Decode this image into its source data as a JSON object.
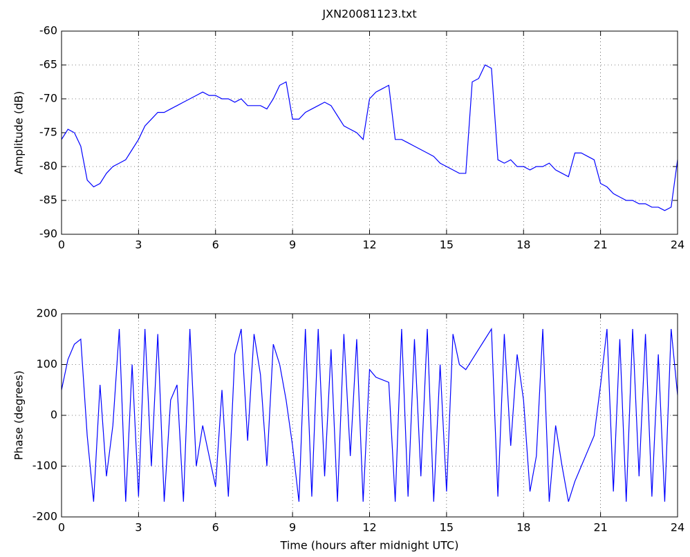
{
  "chart_data": [
    {
      "type": "line",
      "title": "JXN20081123.txt",
      "y_label": "Amplitude (dB)",
      "grid": true,
      "xlim": [
        0,
        24
      ],
      "xticks": [
        0,
        3,
        6,
        9,
        12,
        15,
        18,
        21,
        24
      ],
      "ylim": [
        -90,
        -60
      ],
      "yticks": [
        -90,
        -85,
        -80,
        -75,
        -70,
        -65,
        -60
      ],
      "x": [
        0,
        0.25,
        0.5,
        0.75,
        1,
        1.25,
        1.5,
        1.75,
        2,
        2.25,
        2.5,
        2.75,
        3,
        3.25,
        3.5,
        3.75,
        4,
        4.25,
        4.5,
        4.75,
        5,
        5.25,
        5.5,
        5.75,
        6,
        6.25,
        6.5,
        6.75,
        7,
        7.25,
        7.5,
        7.75,
        8,
        8.25,
        8.5,
        8.75,
        9,
        9.25,
        9.5,
        9.75,
        10,
        10.25,
        10.5,
        10.75,
        11,
        11.25,
        11.5,
        11.75,
        12,
        12.25,
        12.5,
        12.75,
        13,
        13.25,
        13.5,
        13.75,
        14,
        14.25,
        14.5,
        14.75,
        15,
        15.25,
        15.5,
        15.75,
        16,
        16.25,
        16.5,
        16.75,
        17,
        17.25,
        17.5,
        17.75,
        18,
        18.25,
        18.5,
        18.75,
        19,
        19.25,
        19.5,
        19.75,
        20,
        20.25,
        20.5,
        20.75,
        21,
        21.25,
        21.5,
        21.75,
        22,
        22.25,
        22.5,
        22.75,
        23,
        23.25,
        23.5,
        23.75,
        24
      ],
      "series": [
        {
          "name": "Amplitude",
          "color": "#0000ff",
          "values": [
            -76,
            -74.5,
            -75,
            -77,
            -82,
            -83,
            -82.5,
            -81,
            -80,
            -79.5,
            -79,
            -77.5,
            -76,
            -74,
            -73,
            -72,
            -72,
            -71.5,
            -71,
            -70.5,
            -70,
            -69.5,
            -69,
            -69.5,
            -69.5,
            -70,
            -70,
            -70.5,
            -70,
            -71,
            -71,
            -71,
            -71.5,
            -70,
            -68,
            -67.5,
            -73,
            -73,
            -72,
            -71.5,
            -71,
            -70.5,
            -71,
            -72.5,
            -74,
            -74.5,
            -75,
            -76,
            -70,
            -69,
            -68.5,
            -68,
            -76,
            -76,
            -76.5,
            -77,
            -77.5,
            -78,
            -78.5,
            -79.5,
            -80,
            -80.5,
            -81,
            -81,
            -67.5,
            -67,
            -65,
            -65.5,
            -79,
            -79.5,
            -79,
            -80,
            -80,
            -80.5,
            -80,
            -80,
            -79.5,
            -80.5,
            -81,
            -81.5,
            -78,
            -78,
            -78.5,
            -79,
            -82.5,
            -83,
            -84,
            -84.5,
            -85,
            -85,
            -85.5,
            -85.5,
            -86,
            -86,
            -86.5,
            -86,
            -79
          ]
        }
      ]
    },
    {
      "type": "line",
      "x_label": "Time (hours after midnight UTC)",
      "y_label": "Phase (degrees)",
      "grid": true,
      "xlim": [
        0,
        24
      ],
      "xticks": [
        0,
        3,
        6,
        9,
        12,
        15,
        18,
        21,
        24
      ],
      "ylim": [
        -200,
        200
      ],
      "yticks": [
        -200,
        -100,
        0,
        100,
        200
      ],
      "x": [
        0,
        0.25,
        0.5,
        0.75,
        1,
        1.25,
        1.5,
        1.75,
        2,
        2.25,
        2.5,
        2.75,
        3,
        3.25,
        3.5,
        3.75,
        4,
        4.25,
        4.5,
        4.75,
        5,
        5.25,
        5.5,
        5.75,
        6,
        6.25,
        6.5,
        6.75,
        7,
        7.25,
        7.5,
        7.75,
        8,
        8.25,
        8.5,
        8.75,
        9,
        9.25,
        9.5,
        9.75,
        10,
        10.25,
        10.5,
        10.75,
        11,
        11.25,
        11.5,
        11.75,
        12,
        12.25,
        12.5,
        12.75,
        13,
        13.25,
        13.5,
        13.75,
        14,
        14.25,
        14.5,
        14.75,
        15,
        15.25,
        15.5,
        15.75,
        16,
        16.25,
        16.5,
        16.75,
        17,
        17.25,
        17.5,
        17.75,
        18,
        18.25,
        18.5,
        18.75,
        19,
        19.25,
        19.5,
        19.75,
        20,
        20.25,
        20.5,
        20.75,
        21,
        21.25,
        21.5,
        21.75,
        22,
        22.25,
        22.5,
        22.75,
        23,
        23.25,
        23.5,
        23.75,
        24
      ],
      "series": [
        {
          "name": "Phase",
          "color": "#0000ff",
          "values": [
            50,
            110,
            140,
            150,
            -40,
            -170,
            60,
            -120,
            -20,
            170,
            -170,
            100,
            -160,
            170,
            -100,
            160,
            -170,
            30,
            60,
            -170,
            170,
            -100,
            -20,
            -80,
            -140,
            50,
            -160,
            120,
            170,
            -50,
            160,
            80,
            -100,
            140,
            100,
            30,
            -60,
            -170,
            170,
            -160,
            170,
            -120,
            130,
            -170,
            160,
            -80,
            150,
            -170,
            90,
            75,
            70,
            65,
            -170,
            170,
            -160,
            150,
            -120,
            170,
            -170,
            100,
            -150,
            160,
            100,
            90,
            110,
            130,
            150,
            170,
            -160,
            160,
            -60,
            120,
            30,
            -150,
            -80,
            170,
            -170,
            -20,
            -100,
            -170,
            -130,
            -100,
            -70,
            -40,
            60,
            170,
            -150,
            150,
            -170,
            170,
            -120,
            160,
            -160,
            120,
            -170,
            170,
            40
          ]
        }
      ]
    }
  ]
}
